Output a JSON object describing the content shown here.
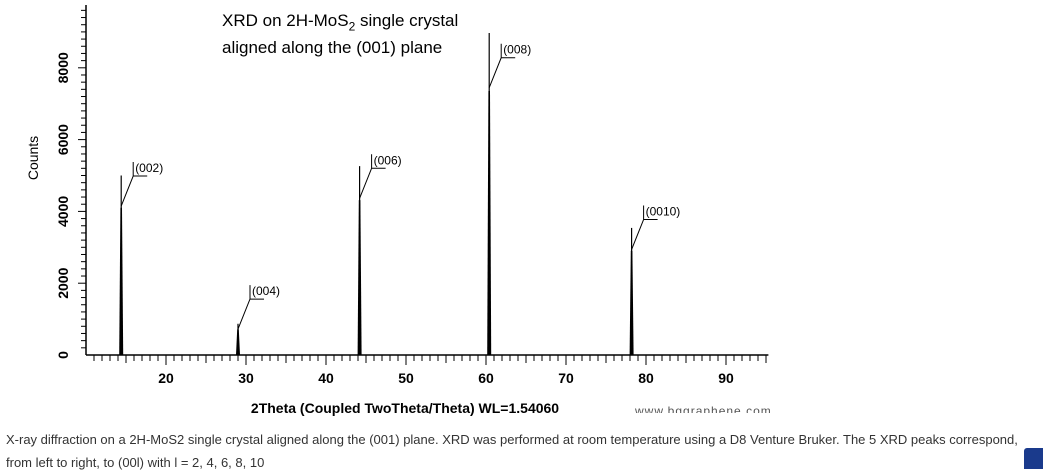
{
  "chart_data": {
    "type": "line",
    "title_line1": "XRD on 2H-MoS",
    "title_sub": "2",
    "title_line1_end": " single crystal",
    "title_line2": "aligned along the (001) plane",
    "xlabel": "2Theta (Coupled TwoTheta/Theta) WL=1.54060",
    "ylabel": "Counts",
    "xlim": [
      10,
      95.3
    ],
    "ylim": [
      0,
      9750
    ],
    "xticks": [
      20,
      30,
      40,
      50,
      60,
      70,
      80,
      90
    ],
    "yticks": [
      0,
      2000,
      4000,
      6000,
      8000
    ],
    "peaks": [
      {
        "x": 14.4,
        "y": 5000,
        "label": "(002)"
      },
      {
        "x": 29.0,
        "y": 870,
        "label": "(004)"
      },
      {
        "x": 44.2,
        "y": 5260,
        "label": "(006)"
      },
      {
        "x": 60.4,
        "y": 8970,
        "label": "(008)"
      },
      {
        "x": 78.2,
        "y": 3540,
        "label": "(0010)"
      }
    ]
  },
  "watermark": "www.bggraphene.com",
  "caption": "X-ray diffraction on a 2H-MoS2 single crystal aligned along the (001) plane. XRD was performed at room temperature using a D8 Venture Bruker. The 5 XRD peaks correspond, from left to right, to (00l) with l = 2, 4, 6, 8, 10"
}
